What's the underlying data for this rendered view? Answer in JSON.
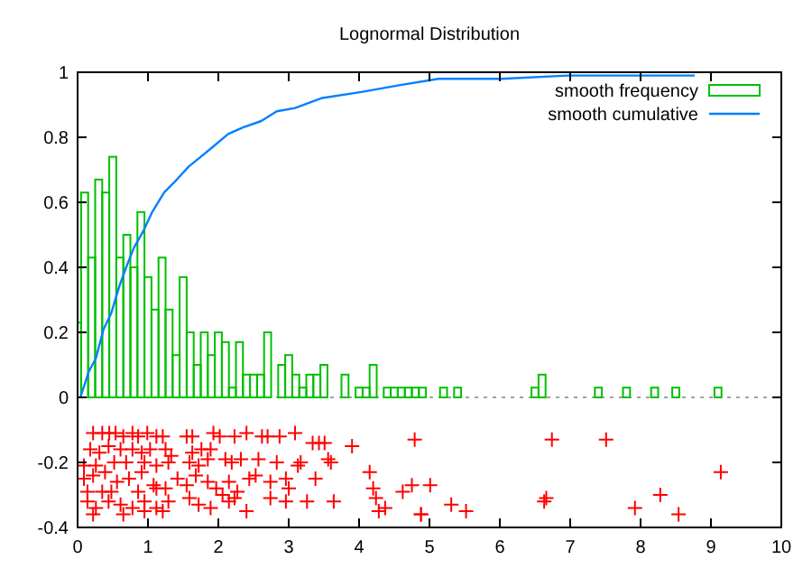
{
  "chart_data": {
    "type": "bar",
    "title": "Lognormal Distribution",
    "xlim": [
      0,
      10
    ],
    "xticks": [
      0,
      1,
      2,
      3,
      4,
      5,
      6,
      7,
      8,
      9,
      10
    ],
    "ylim": [
      -0.4,
      1
    ],
    "yticks": [
      -0.4,
      -0.2,
      0,
      0.2,
      0.4,
      0.6,
      0.8,
      1
    ],
    "legend": "top right",
    "ref_lines": [
      {
        "axis": "y",
        "value": 0,
        "color": "#a0a0a0",
        "line_style": "dotted"
      }
    ],
    "series": [
      {
        "name": "smooth frequency",
        "color": "#00c000",
        "x": [
          0,
          0.1,
          0.2,
          0.3,
          0.4,
          0.5,
          0.6,
          0.7,
          0.8,
          0.9,
          1,
          1.1,
          1.2,
          1.3,
          1.4,
          1.5,
          1.6,
          1.7,
          1.8,
          1.9,
          2,
          2.1,
          2.2,
          2.3,
          2.4,
          2.5,
          2.6,
          2.7,
          2.9,
          3,
          3.1,
          3.2,
          3.3,
          3.4,
          3.5,
          3.8,
          4,
          4.1,
          4.2,
          4.4,
          4.5,
          4.6,
          4.7,
          4.8,
          4.9,
          5.2,
          5.4,
          6.5,
          6.6,
          7.4,
          7.8,
          8.2,
          8.5,
          9.1
        ],
        "values": [
          0.23,
          0.63,
          0.43,
          0.67,
          0.63,
          0.74,
          0.43,
          0.5,
          0.4,
          0.57,
          0.37,
          0.27,
          0.43,
          0.27,
          0.13,
          0.37,
          0.2,
          0.1,
          0.2,
          0.13,
          0.2,
          0.17,
          0.03,
          0.17,
          0.07,
          0.07,
          0.07,
          0.2,
          0.1,
          0.13,
          0.07,
          0.03,
          0.07,
          0.07,
          0.1,
          0.07,
          0.03,
          0.03,
          0.1,
          0.03,
          0.03,
          0.03,
          0.03,
          0.03,
          0.03,
          0.03,
          0.03,
          0.03,
          0.07,
          0.03,
          0.03,
          0.03,
          0.03,
          0.03
        ]
      },
      {
        "type": "line",
        "name": "smooth cumulative",
        "color": "#0080ff",
        "x": [
          0.04,
          0.16,
          0.26,
          0.37,
          0.48,
          0.59,
          0.69,
          0.8,
          0.93,
          1.06,
          1.23,
          1.41,
          1.58,
          1.75,
          1.92,
          2.14,
          2.35,
          2.61,
          2.83,
          3.09,
          3.46,
          4.05,
          4.57,
          5.13,
          6.03,
          6.97,
          8.04,
          8.77
        ],
        "values": [
          0,
          0.08,
          0.12,
          0.21,
          0.26,
          0.34,
          0.4,
          0.46,
          0.51,
          0.57,
          0.63,
          0.67,
          0.71,
          0.74,
          0.77,
          0.81,
          0.83,
          0.85,
          0.88,
          0.89,
          0.92,
          0.94,
          0.96,
          0.98,
          0.98,
          0.99,
          0.99,
          0.99
        ]
      },
      {
        "type": "scatter",
        "color": "#ff0000",
        "marker": "cross",
        "x": [
          0.22,
          0.35,
          0.45,
          0.54,
          0.65,
          0.78,
          0.86,
          0.99,
          1.12,
          1.21,
          1.55,
          1.63,
          1.93,
          2.02,
          2.23,
          2.4,
          2.62,
          2.7,
          2.87,
          3.09,
          3.34,
          3.43,
          3.51,
          3.9,
          4.15,
          4.79,
          0.18,
          0.31,
          0.44,
          0.61,
          0.78,
          0.91,
          1.03,
          1.25,
          1.33,
          1.63,
          1.76,
          1.89,
          1.59,
          1.72,
          1.85,
          2.1,
          2.19,
          2.32,
          2.57,
          2.83,
          3.13,
          3.17,
          3.56,
          3.6,
          0.09,
          0.26,
          0.52,
          0.69,
          0.95,
          1.12,
          1.29,
          0.09,
          0.22,
          0.39,
          0.56,
          0.73,
          0.91,
          1.08,
          1.25,
          1.42,
          1.68,
          1.85,
          1.97,
          2.15,
          2.27,
          2.44,
          2.53,
          2.74,
          2.96,
          3.0,
          3.38,
          4.2,
          4.62,
          4.75,
          0.14,
          0.35,
          0.48,
          0.86,
          1.12,
          1.55,
          0.14,
          0.26,
          0.44,
          0.61,
          0.78,
          0.95,
          1.12,
          1.29,
          1.59,
          1.72,
          1.89,
          2.23,
          2.4,
          2.74,
          2.96,
          3.26,
          3.64,
          4.24,
          4.28,
          4.37,
          4.88,
          0.22,
          0.65,
          0.95,
          1.21,
          2.15,
          2.06,
          5.01,
          4.88,
          5.31,
          5.52,
          6.63,
          6.66,
          6.74,
          7.51,
          7.92,
          8.28,
          8.54,
          9.14
        ],
        "values": [
          -0.11,
          -0.11,
          -0.11,
          -0.11,
          -0.12,
          -0.11,
          -0.12,
          -0.11,
          -0.12,
          -0.12,
          -0.12,
          -0.12,
          -0.11,
          -0.12,
          -0.12,
          -0.11,
          -0.12,
          -0.12,
          -0.12,
          -0.11,
          -0.14,
          -0.14,
          -0.14,
          -0.15,
          -0.23,
          -0.13,
          -0.16,
          -0.17,
          -0.15,
          -0.16,
          -0.16,
          -0.17,
          -0.16,
          -0.16,
          -0.18,
          -0.17,
          -0.16,
          -0.16,
          -0.2,
          -0.21,
          -0.19,
          -0.19,
          -0.2,
          -0.19,
          -0.19,
          -0.2,
          -0.21,
          -0.2,
          -0.19,
          -0.2,
          -0.21,
          -0.21,
          -0.2,
          -0.2,
          -0.2,
          -0.21,
          -0.2,
          -0.25,
          -0.24,
          -0.23,
          -0.26,
          -0.25,
          -0.23,
          -0.27,
          -0.28,
          -0.25,
          -0.24,
          -0.26,
          -0.28,
          -0.26,
          -0.29,
          -0.25,
          -0.24,
          -0.26,
          -0.25,
          -0.28,
          -0.25,
          -0.28,
          -0.29,
          -0.27,
          -0.29,
          -0.29,
          -0.29,
          -0.29,
          -0.28,
          -0.27,
          -0.32,
          -0.34,
          -0.32,
          -0.33,
          -0.34,
          -0.32,
          -0.34,
          -0.32,
          -0.31,
          -0.33,
          -0.34,
          -0.31,
          -0.35,
          -0.31,
          -0.32,
          -0.32,
          -0.32,
          -0.31,
          -0.35,
          -0.34,
          -0.36,
          -0.36,
          -0.36,
          -0.35,
          -0.35,
          -0.32,
          -0.3,
          -0.27,
          -0.36,
          -0.33,
          -0.35,
          -0.32,
          -0.31,
          -0.13,
          -0.13,
          -0.34,
          -0.3,
          -0.36,
          -0.23
        ]
      }
    ]
  }
}
